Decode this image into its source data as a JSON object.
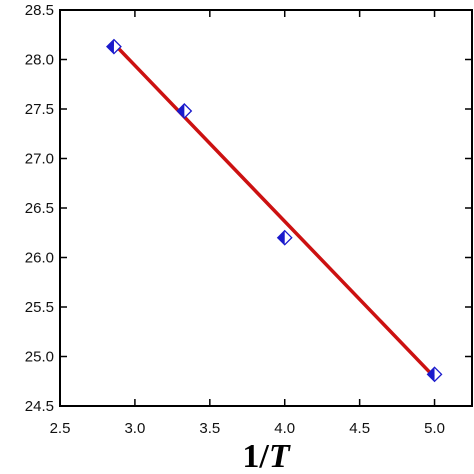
{
  "chart_data": {
    "type": "scatter",
    "title": "",
    "xlabel": "1/T",
    "xlabel_parts": {
      "prefix": "1/",
      "var": "T"
    },
    "ylabel": "",
    "xlim": [
      2.5,
      5.25
    ],
    "ylim": [
      24.5,
      28.5
    ],
    "xticks": [
      2.5,
      3.0,
      3.5,
      4.0,
      4.5,
      5.0
    ],
    "xtick_labels": [
      "2.5",
      "3.0",
      "3.5",
      "4.0",
      "4.5",
      "5.0"
    ],
    "yticks": [
      24.5,
      25.0,
      25.5,
      26.0,
      26.5,
      27.0,
      27.5,
      28.0,
      28.5
    ],
    "ytick_labels": [
      "24.5",
      "25.0",
      "25.5",
      "26.0",
      "26.5",
      "27.0",
      "27.5",
      "28.0",
      "28.5"
    ],
    "grid": false,
    "legend": "none",
    "series": [
      {
        "kind": "points",
        "marker": "diamond-half-filled",
        "color": "#1a1acc",
        "x": [
          2.86,
          3.33,
          4.0,
          5.0
        ],
        "y": [
          28.13,
          27.48,
          26.2,
          24.82
        ]
      },
      {
        "kind": "fit-line",
        "color": "#cc1111",
        "x": [
          2.86,
          5.0
        ],
        "y": [
          28.16,
          24.79
        ]
      }
    ]
  }
}
